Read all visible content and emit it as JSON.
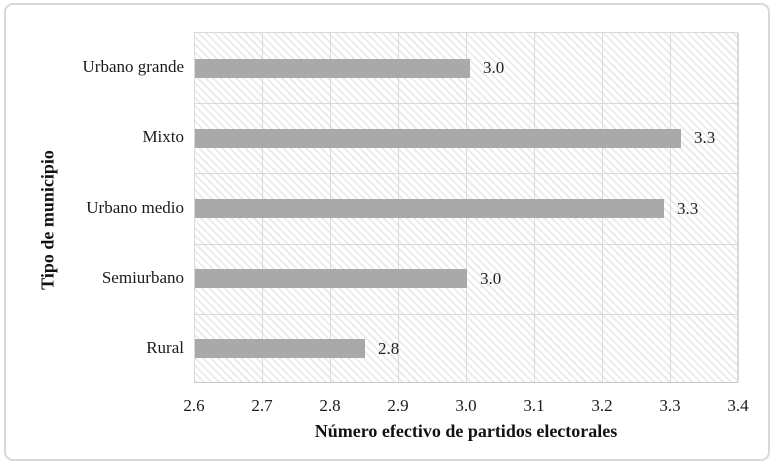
{
  "figure": {
    "background": "#ffffff",
    "border_color": "#d8d8d8"
  },
  "chart_data": {
    "type": "bar",
    "orientation": "horizontal",
    "title": "",
    "xlabel": "Número efectivo de partidos electorales",
    "ylabel": "Tipo de municipio",
    "categories": [
      "Urbano grande",
      "Mixto",
      "Urbano medio",
      "Semiurbano",
      "Rural"
    ],
    "values": [
      3.0,
      3.3,
      3.3,
      3.0,
      2.8
    ],
    "value_labels": [
      "3.0",
      "3.3",
      "3.3",
      "3.0",
      "2.8"
    ],
    "bar_extents": [
      3.005,
      3.315,
      3.29,
      3.0,
      2.85
    ],
    "xlim": [
      2.6,
      3.4
    ],
    "xticks": [
      2.6,
      2.7,
      2.8,
      2.9,
      3.0,
      3.1,
      3.2,
      3.3,
      3.4
    ],
    "xtick_labels": [
      "2.6",
      "2.7",
      "2.8",
      "2.9",
      "3.0",
      "3.1",
      "3.2",
      "3.3",
      "3.4"
    ],
    "grid": true,
    "legend": "none",
    "bar_color": "#a9a9a9",
    "gridline_color": "#d9d9d9",
    "plot_background_hatch": "light-diagonal-down-stripes"
  }
}
